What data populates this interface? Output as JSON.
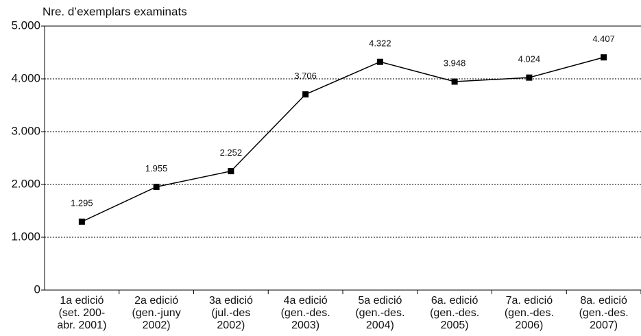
{
  "chart_data": {
    "type": "line",
    "y_axis_label": "Nre. d’exemplars examinats",
    "categories": [
      [
        "1a edició",
        "(set. 200-",
        "abr. 2001)"
      ],
      [
        "2a edició",
        "(gen.-juny",
        "2002)"
      ],
      [
        "3a edició",
        "(jul.-des",
        "2002)"
      ],
      [
        "4a edició",
        "(gen.-des.",
        "2003)"
      ],
      [
        "5a edició",
        "(gen.-des.",
        "2004)"
      ],
      [
        "6a. edició",
        "(gen.-des.",
        "2005)"
      ],
      [
        "7a. edició",
        "(gen.-des.",
        "2006)"
      ],
      [
        "8a. edició",
        "(gen.-des.",
        "2007)"
      ]
    ],
    "series": [
      {
        "color": "#000000",
        "values": [
          1295,
          1955,
          2252,
          3706,
          4322,
          3948,
          4024,
          4407
        ],
        "value_labels": [
          "1.295",
          "1.955",
          "2.252",
          "3.706",
          "4.322",
          "3.948",
          "4.024",
          "4.407"
        ]
      }
    ],
    "ylim": [
      0,
      5000
    ],
    "yticks": [
      0,
      {
        "value": 1000,
        "label": "1.000"
      },
      {
        "value": 2000,
        "label": "2.000"
      },
      {
        "value": 3000,
        "label": "3.000"
      },
      {
        "value": 4000,
        "label": "4.000"
      },
      {
        "value": 5000,
        "label": "5.000"
      }
    ],
    "grid": true
  }
}
